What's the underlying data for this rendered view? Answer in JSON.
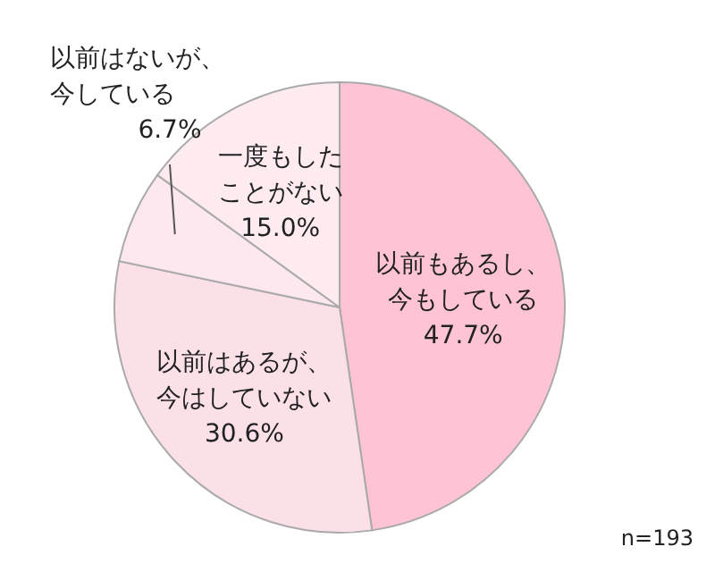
{
  "chart_data": {
    "type": "pie",
    "categories": [
      "以前もあるし、今もしている",
      "以前はあるが、今はしていない",
      "以前はないが、今している",
      "一度もしたことがない"
    ],
    "values": [
      47.7,
      30.6,
      6.7,
      15.0
    ],
    "colors": [
      "#ffc4d4",
      "#fbe0e8",
      "#fce8ee",
      "#fdebf0"
    ],
    "value_labels": [
      "47.7%",
      "30.6%",
      "6.7%",
      "15.0%"
    ],
    "annotations": [
      "n=193"
    ]
  }
}
